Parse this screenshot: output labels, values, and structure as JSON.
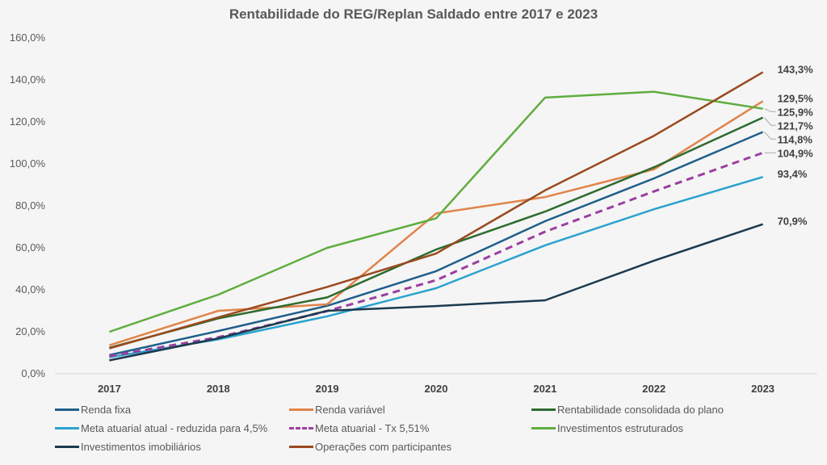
{
  "chart_data": {
    "type": "line",
    "title": "Rentabilidade do REG/Replan Saldado entre 2017 e 2023",
    "xlabel": "",
    "ylabel": "",
    "categories": [
      "2017",
      "2018",
      "2019",
      "2020",
      "2021",
      "2022",
      "2023"
    ],
    "ylim": [
      0,
      160
    ],
    "yticks": [
      0,
      20,
      40,
      60,
      80,
      100,
      120,
      140,
      160
    ],
    "ytick_labels": [
      "0,0%",
      "20,0%",
      "40,0%",
      "60,0%",
      "80,0%",
      "100,0%",
      "120,0%",
      "140,0%",
      "160,0%"
    ],
    "grid": false,
    "legend_position": "bottom",
    "series": [
      {
        "name": "Renda fixa",
        "color": "#1f5f8b",
        "dash": false,
        "values": [
          8.5,
          20.0,
          32.0,
          48.5,
          72.3,
          92.7,
          114.8
        ],
        "end_label": "114,8%"
      },
      {
        "name": "Renda variável",
        "color": "#e0844a",
        "dash": false,
        "values": [
          13.2,
          29.6,
          32.7,
          76.0,
          83.8,
          97.0,
          129.5
        ],
        "end_label": "129,5%"
      },
      {
        "name": "Rentabilidade consolidada do plano",
        "color": "#2e6b2e",
        "dash": false,
        "values": [
          12.0,
          26.0,
          36.0,
          58.8,
          76.9,
          98.0,
          121.7
        ],
        "end_label": "121,7%"
      },
      {
        "name": "Meta atuarial atual - reduzida para 4,5%",
        "color": "#2aa3cf",
        "dash": false,
        "values": [
          7.5,
          16.0,
          27.0,
          40.4,
          60.8,
          78.0,
          93.4
        ],
        "end_label": "93,4%"
      },
      {
        "name": "Meta atuarial - Tx 5,51%",
        "color": "#9b3fa0",
        "dash": true,
        "values": [
          8.0,
          17.0,
          29.5,
          44.2,
          67.3,
          86.5,
          104.9
        ],
        "end_label": "104,9%"
      },
      {
        "name": "Investimentos estruturados",
        "color": "#5fad3e",
        "dash": false,
        "values": [
          19.6,
          37.3,
          59.6,
          73.7,
          131.2,
          134.0,
          125.9
        ],
        "end_label": "125,9%"
      },
      {
        "name": "Investimentos imobiliários",
        "color": "#1b3a4f",
        "dash": false,
        "values": [
          6.0,
          16.5,
          29.6,
          31.9,
          34.6,
          53.5,
          70.9
        ],
        "end_label": "70,9%"
      },
      {
        "name": "Operações com participantes",
        "color": "#9a4a1e",
        "dash": false,
        "values": [
          11.7,
          26.5,
          41.0,
          56.9,
          87.0,
          113.0,
          143.3
        ],
        "end_label": "143,3%"
      }
    ]
  }
}
